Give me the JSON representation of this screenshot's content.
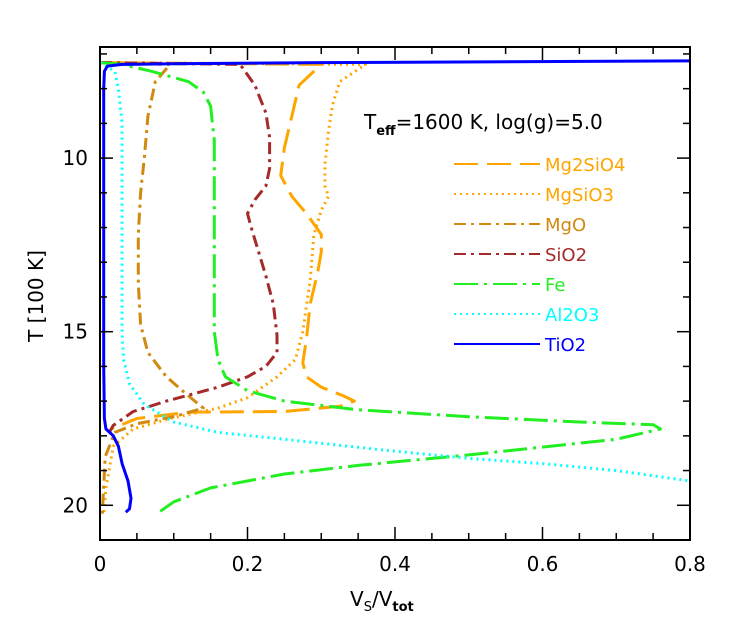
{
  "chart_data": {
    "type": "line",
    "title": "",
    "annotation": {
      "base": "T",
      "sub": "eff",
      "rest": "=1600 K, log(g)=5.0"
    },
    "xlabel": {
      "base": "V",
      "sub1": "S",
      "mid": "/V",
      "sub2": "tot"
    },
    "ylabel": "T [100 K]",
    "xlim": [
      0,
      0.8
    ],
    "ylim": [
      21,
      6.8
    ],
    "y_inverted": true,
    "grid": false,
    "legend_position": "top-right",
    "x_ticks": [
      {
        "value": 0,
        "label": "0"
      },
      {
        "value": 0.2,
        "label": "0.2"
      },
      {
        "value": 0.4,
        "label": "0.4"
      },
      {
        "value": 0.6,
        "label": "0.6"
      },
      {
        "value": 0.8,
        "label": "0.8"
      }
    ],
    "y_ticks": [
      {
        "value": 10,
        "label": "10"
      },
      {
        "value": 15,
        "label": "15"
      },
      {
        "value": 20,
        "label": "20"
      }
    ],
    "series": [
      {
        "name": "Mg2SiO4",
        "color": "#FFA500",
        "dash": "24,9",
        "points": [
          [
            0.0,
            7.25
          ],
          [
            0.3,
            7.3
          ],
          [
            0.27,
            7.9
          ],
          [
            0.26,
            8.8
          ],
          [
            0.25,
            9.7
          ],
          [
            0.245,
            10.5
          ],
          [
            0.26,
            11.1
          ],
          [
            0.28,
            11.6
          ],
          [
            0.3,
            12.2
          ],
          [
            0.3,
            12.7
          ],
          [
            0.295,
            13.3
          ],
          [
            0.285,
            14.2
          ],
          [
            0.28,
            15.2
          ],
          [
            0.275,
            15.9
          ],
          [
            0.28,
            16.3
          ],
          [
            0.3,
            16.6
          ],
          [
            0.33,
            16.85
          ],
          [
            0.345,
            17.0
          ],
          [
            0.325,
            17.15
          ],
          [
            0.25,
            17.3
          ],
          [
            0.12,
            17.32
          ],
          [
            0.05,
            17.5
          ],
          [
            0.015,
            17.8
          ]
        ]
      },
      {
        "name": "MgSiO3",
        "color": "#FFA500",
        "dash": "2,4",
        "points": [
          [
            0.0,
            7.25
          ],
          [
            0.36,
            7.3
          ],
          [
            0.325,
            7.8
          ],
          [
            0.315,
            8.5
          ],
          [
            0.31,
            9.2
          ],
          [
            0.305,
            10.2
          ],
          [
            0.305,
            10.8
          ],
          [
            0.31,
            11.1
          ],
          [
            0.3,
            11.5
          ],
          [
            0.29,
            12.2
          ],
          [
            0.285,
            13.5
          ],
          [
            0.275,
            15.0
          ],
          [
            0.265,
            15.8
          ],
          [
            0.24,
            16.3
          ],
          [
            0.2,
            16.9
          ],
          [
            0.16,
            17.2
          ],
          [
            0.095,
            17.5
          ],
          [
            0.045,
            17.8
          ],
          [
            0.018,
            18.3
          ],
          [
            0.008,
            19.5
          ],
          [
            0.005,
            20.3
          ]
        ]
      },
      {
        "name": "MgO",
        "color": "#D08A10",
        "dash": "12,5,3,5",
        "points": [
          [
            0.0,
            7.25
          ],
          [
            0.095,
            7.3
          ],
          [
            0.075,
            7.8
          ],
          [
            0.065,
            8.8
          ],
          [
            0.06,
            10.0
          ],
          [
            0.055,
            11.0
          ],
          [
            0.052,
            12.2
          ],
          [
            0.052,
            13.6
          ],
          [
            0.055,
            14.8
          ],
          [
            0.065,
            15.6
          ],
          [
            0.09,
            16.3
          ],
          [
            0.12,
            16.85
          ],
          [
            0.14,
            17.2
          ],
          [
            0.1,
            17.45
          ],
          [
            0.05,
            17.65
          ],
          [
            0.02,
            17.9
          ],
          [
            0.007,
            18.6
          ],
          [
            0.003,
            20.3
          ]
        ]
      },
      {
        "name": "SiO2",
        "color": "#A52A2A",
        "dash": "12,5,3,5",
        "points": [
          [
            0.0,
            7.25
          ],
          [
            0.19,
            7.3
          ],
          [
            0.21,
            7.9
          ],
          [
            0.225,
            8.7
          ],
          [
            0.23,
            9.4
          ],
          [
            0.23,
            10.3
          ],
          [
            0.225,
            10.8
          ],
          [
            0.21,
            11.2
          ],
          [
            0.2,
            11.6
          ],
          [
            0.205,
            12.0
          ],
          [
            0.215,
            12.7
          ],
          [
            0.225,
            13.4
          ],
          [
            0.235,
            14.2
          ],
          [
            0.24,
            15.1
          ],
          [
            0.24,
            15.6
          ],
          [
            0.225,
            16.0
          ],
          [
            0.2,
            16.3
          ],
          [
            0.16,
            16.6
          ],
          [
            0.09,
            17.0
          ],
          [
            0.045,
            17.3
          ],
          [
            0.018,
            17.7
          ],
          [
            0.01,
            18.0
          ]
        ]
      },
      {
        "name": "Fe",
        "color": "#22EE22",
        "dash": "24,6,3,6",
        "points": [
          [
            0.0,
            7.25
          ],
          [
            0.03,
            7.3
          ],
          [
            0.07,
            7.5
          ],
          [
            0.12,
            7.8
          ],
          [
            0.14,
            8.1
          ],
          [
            0.15,
            8.5
          ],
          [
            0.155,
            9.5
          ],
          [
            0.155,
            11.0
          ],
          [
            0.155,
            13.0
          ],
          [
            0.155,
            15.0
          ],
          [
            0.16,
            15.8
          ],
          [
            0.17,
            16.3
          ],
          [
            0.2,
            16.7
          ],
          [
            0.25,
            17.0
          ],
          [
            0.35,
            17.25
          ],
          [
            0.5,
            17.45
          ],
          [
            0.65,
            17.6
          ],
          [
            0.75,
            17.68
          ],
          [
            0.76,
            17.8
          ],
          [
            0.7,
            18.1
          ],
          [
            0.5,
            18.55
          ],
          [
            0.35,
            18.85
          ],
          [
            0.25,
            19.1
          ],
          [
            0.15,
            19.5
          ],
          [
            0.1,
            19.9
          ],
          [
            0.08,
            20.2
          ]
        ]
      },
      {
        "name": "Al2O3",
        "color": "#00FFFF",
        "dash": "2,4",
        "points": [
          [
            0.0,
            7.25
          ],
          [
            0.02,
            7.5
          ],
          [
            0.025,
            8.0
          ],
          [
            0.03,
            9.0
          ],
          [
            0.03,
            10.0
          ],
          [
            0.03,
            11.0
          ],
          [
            0.03,
            12.0
          ],
          [
            0.03,
            13.5
          ],
          [
            0.03,
            15.0
          ],
          [
            0.032,
            15.8
          ],
          [
            0.04,
            16.5
          ],
          [
            0.06,
            17.1
          ],
          [
            0.1,
            17.6
          ],
          [
            0.16,
            17.9
          ],
          [
            0.25,
            18.1
          ],
          [
            0.38,
            18.4
          ],
          [
            0.5,
            18.65
          ],
          [
            0.6,
            18.8
          ],
          [
            0.7,
            19.0
          ],
          [
            0.8,
            19.3
          ]
        ]
      },
      {
        "name": "TiO2",
        "color": "#0000FF",
        "dash": "",
        "points": [
          [
            0.8,
            7.2
          ],
          [
            0.3,
            7.25
          ],
          [
            0.1,
            7.28
          ],
          [
            0.03,
            7.3
          ],
          [
            0.01,
            7.35
          ],
          [
            0.006,
            7.5
          ],
          [
            0.005,
            8.0
          ],
          [
            0.005,
            10.0
          ],
          [
            0.005,
            12.0
          ],
          [
            0.005,
            14.0
          ],
          [
            0.005,
            16.0
          ],
          [
            0.006,
            17.5
          ],
          [
            0.008,
            17.8
          ],
          [
            0.018,
            18.0
          ],
          [
            0.025,
            18.3
          ],
          [
            0.03,
            18.8
          ],
          [
            0.038,
            19.3
          ],
          [
            0.042,
            19.8
          ],
          [
            0.04,
            20.1
          ],
          [
            0.035,
            20.2
          ]
        ]
      }
    ]
  }
}
